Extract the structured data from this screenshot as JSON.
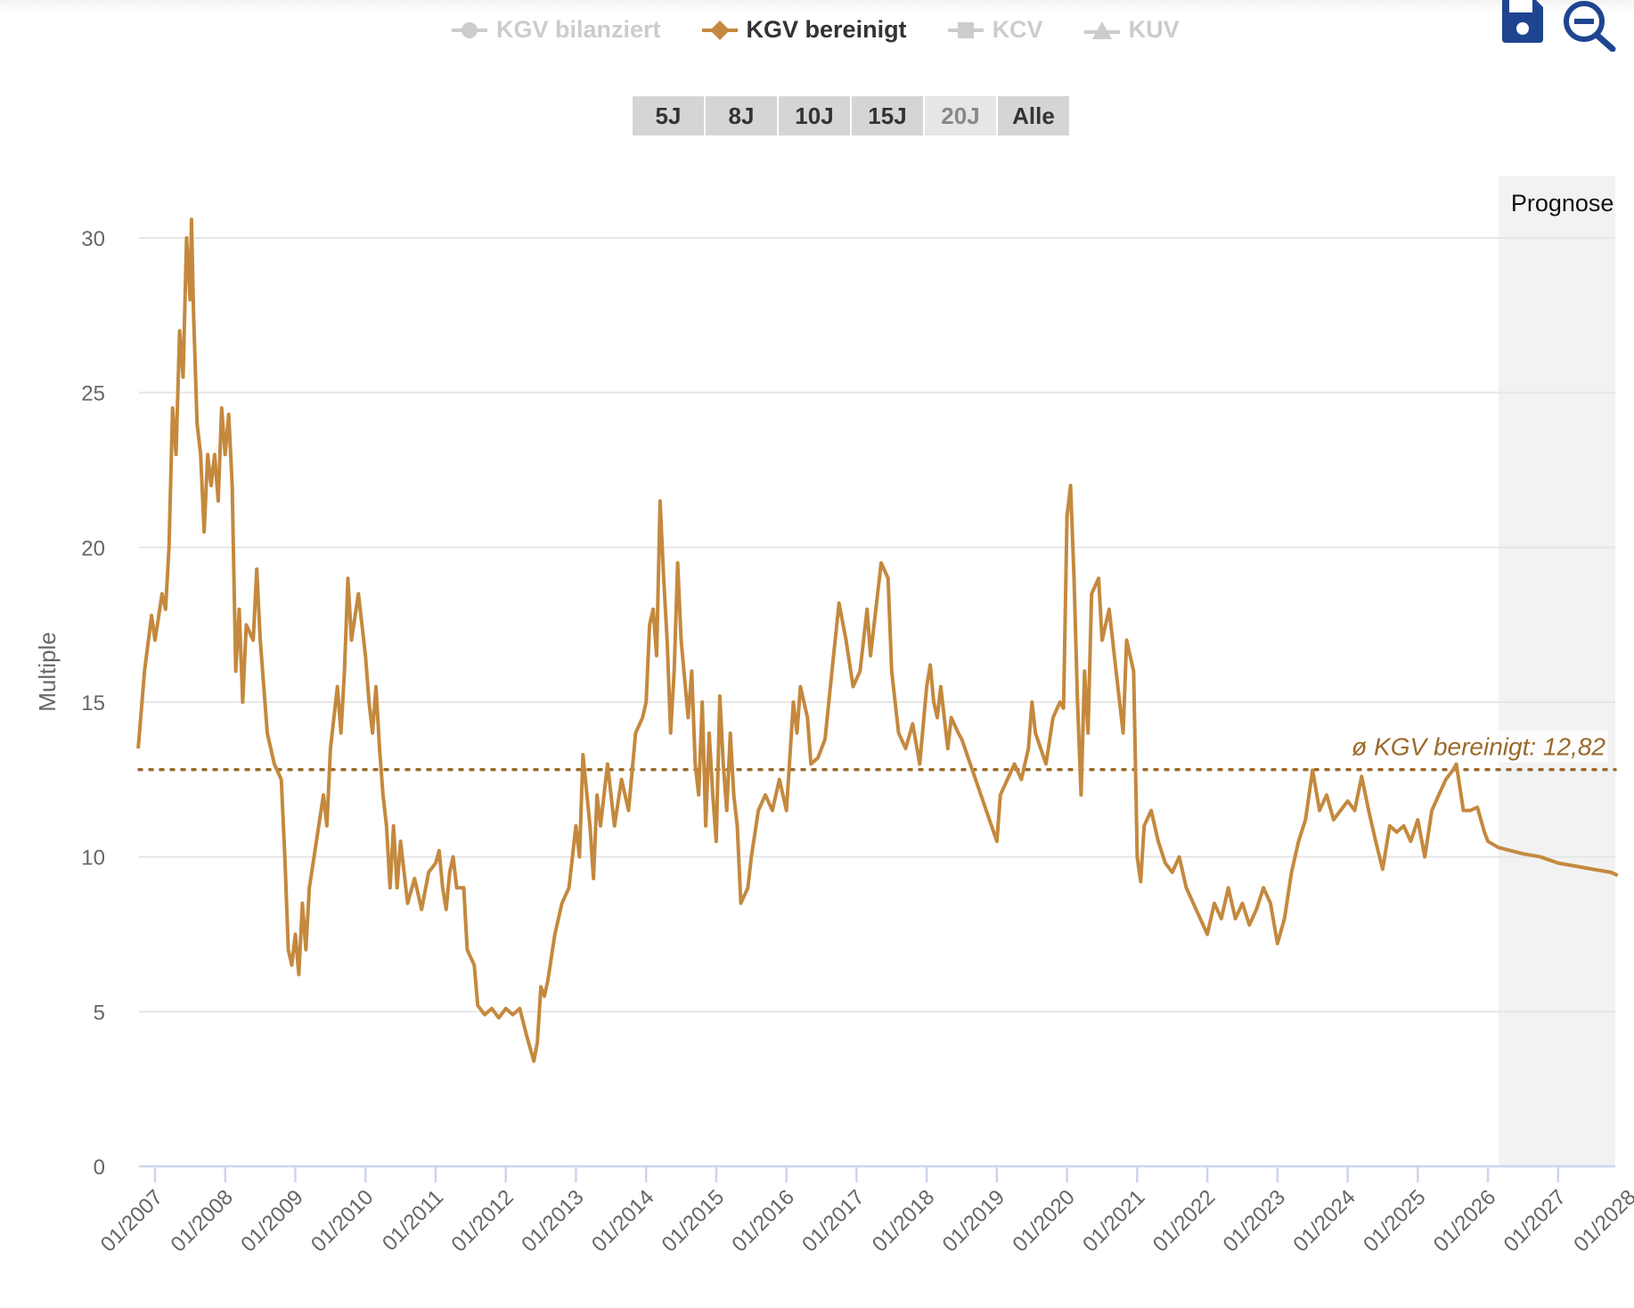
{
  "legend": [
    {
      "label": "KGV bilanziert",
      "icon": "circle-marker",
      "active": false
    },
    {
      "label": "KGV bereinigt",
      "icon": "diamond-marker",
      "active": true
    },
    {
      "label": "KCV",
      "icon": "square-marker",
      "active": false
    },
    {
      "label": "KUV",
      "icon": "triangle-marker",
      "active": false
    }
  ],
  "ranges": [
    {
      "label": "5J",
      "selected": false
    },
    {
      "label": "8J",
      "selected": false
    },
    {
      "label": "10J",
      "selected": false
    },
    {
      "label": "15J",
      "selected": false
    },
    {
      "label": "20J",
      "selected": true
    },
    {
      "label": "Alle",
      "selected": false
    }
  ],
  "toolbar": {
    "save_icon": "save-icon",
    "zoom_out_icon": "zoom-out-icon"
  },
  "colors": {
    "series": "#c4893e",
    "average": "#9a6a2a",
    "forecast_band": "#f2f2f2",
    "axis": "#ccd6eb",
    "grid": "#e6e6e6",
    "icon": "#1f4591"
  },
  "chart_data": {
    "type": "line",
    "title": "",
    "xlabel": "",
    "ylabel": "Multiple",
    "ylim": [
      0,
      30
    ],
    "xlim": [
      2006.76,
      2027.85
    ],
    "grid": true,
    "yticks": [
      "0",
      "5",
      "10",
      "15",
      "20",
      "25",
      "30"
    ],
    "xticks": [
      "01/2007",
      "01/2008",
      "01/2009",
      "01/2010",
      "01/2011",
      "01/2012",
      "01/2013",
      "01/2014",
      "01/2015",
      "01/2016",
      "01/2017",
      "01/2018",
      "01/2019",
      "01/2020",
      "01/2021",
      "01/2022",
      "01/2023",
      "01/2024",
      "01/2025",
      "01/2026",
      "01/2027",
      "01/2028"
    ],
    "forecast": {
      "label": "Prognose",
      "start": 2026.15
    },
    "average": {
      "label": "ø KGV bereinigt: 12,82",
      "value": 12.82
    },
    "series": [
      {
        "name": "KGV bereinigt",
        "points": [
          [
            2006.76,
            13.5
          ],
          [
            2006.85,
            16
          ],
          [
            2006.95,
            17.8
          ],
          [
            2007.0,
            17
          ],
          [
            2007.1,
            18.5
          ],
          [
            2007.15,
            18
          ],
          [
            2007.2,
            20
          ],
          [
            2007.25,
            24.5
          ],
          [
            2007.3,
            23
          ],
          [
            2007.35,
            27
          ],
          [
            2007.4,
            25.5
          ],
          [
            2007.45,
            30
          ],
          [
            2007.5,
            28
          ],
          [
            2007.52,
            30.6
          ],
          [
            2007.55,
            27.5
          ],
          [
            2007.6,
            24
          ],
          [
            2007.65,
            23
          ],
          [
            2007.7,
            20.5
          ],
          [
            2007.75,
            23
          ],
          [
            2007.8,
            22
          ],
          [
            2007.85,
            23
          ],
          [
            2007.9,
            21.5
          ],
          [
            2007.95,
            24.5
          ],
          [
            2008.0,
            23
          ],
          [
            2008.05,
            24.3
          ],
          [
            2008.1,
            22
          ],
          [
            2008.15,
            16
          ],
          [
            2008.2,
            18
          ],
          [
            2008.25,
            15
          ],
          [
            2008.3,
            17.5
          ],
          [
            2008.4,
            17
          ],
          [
            2008.45,
            19.3
          ],
          [
            2008.5,
            17
          ],
          [
            2008.6,
            14
          ],
          [
            2008.7,
            13
          ],
          [
            2008.8,
            12.5
          ],
          [
            2008.85,
            10
          ],
          [
            2008.9,
            7
          ],
          [
            2008.95,
            6.5
          ],
          [
            2009.0,
            7.5
          ],
          [
            2009.05,
            6.2
          ],
          [
            2009.1,
            8.5
          ],
          [
            2009.15,
            7
          ],
          [
            2009.2,
            9
          ],
          [
            2009.3,
            10.5
          ],
          [
            2009.4,
            12
          ],
          [
            2009.45,
            11
          ],
          [
            2009.5,
            13.5
          ],
          [
            2009.6,
            15.5
          ],
          [
            2009.65,
            14
          ],
          [
            2009.7,
            16
          ],
          [
            2009.75,
            19
          ],
          [
            2009.8,
            17
          ],
          [
            2009.9,
            18.5
          ],
          [
            2010.0,
            16.5
          ],
          [
            2010.05,
            15
          ],
          [
            2010.1,
            14
          ],
          [
            2010.15,
            15.5
          ],
          [
            2010.2,
            13.5
          ],
          [
            2010.25,
            12
          ],
          [
            2010.3,
            11
          ],
          [
            2010.35,
            9
          ],
          [
            2010.4,
            11
          ],
          [
            2010.45,
            9
          ],
          [
            2010.5,
            10.5
          ],
          [
            2010.6,
            8.5
          ],
          [
            2010.7,
            9.3
          ],
          [
            2010.8,
            8.3
          ],
          [
            2010.9,
            9.5
          ],
          [
            2011.0,
            9.8
          ],
          [
            2011.05,
            10.2
          ],
          [
            2011.1,
            9
          ],
          [
            2011.15,
            8.3
          ],
          [
            2011.2,
            9.5
          ],
          [
            2011.25,
            10
          ],
          [
            2011.3,
            9
          ],
          [
            2011.4,
            9
          ],
          [
            2011.45,
            7
          ],
          [
            2011.55,
            6.5
          ],
          [
            2011.6,
            5.2
          ],
          [
            2011.7,
            4.9
          ],
          [
            2011.8,
            5.1
          ],
          [
            2011.9,
            4.8
          ],
          [
            2012.0,
            5.1
          ],
          [
            2012.1,
            4.9
          ],
          [
            2012.2,
            5.1
          ],
          [
            2012.3,
            4.2
          ],
          [
            2012.4,
            3.4
          ],
          [
            2012.45,
            4
          ],
          [
            2012.5,
            5.8
          ],
          [
            2012.55,
            5.5
          ],
          [
            2012.6,
            6
          ],
          [
            2012.7,
            7.5
          ],
          [
            2012.8,
            8.5
          ],
          [
            2012.9,
            9
          ],
          [
            2013.0,
            11
          ],
          [
            2013.05,
            10
          ],
          [
            2013.1,
            13.3
          ],
          [
            2013.2,
            11
          ],
          [
            2013.25,
            9.3
          ],
          [
            2013.3,
            12
          ],
          [
            2013.35,
            11
          ],
          [
            2013.45,
            13
          ],
          [
            2013.55,
            11
          ],
          [
            2013.65,
            12.5
          ],
          [
            2013.75,
            11.5
          ],
          [
            2013.85,
            14
          ],
          [
            2013.95,
            14.5
          ],
          [
            2014.0,
            15
          ],
          [
            2014.05,
            17.5
          ],
          [
            2014.1,
            18
          ],
          [
            2014.15,
            16.5
          ],
          [
            2014.2,
            21.5
          ],
          [
            2014.25,
            19
          ],
          [
            2014.3,
            17
          ],
          [
            2014.35,
            14
          ],
          [
            2014.4,
            16
          ],
          [
            2014.45,
            19.5
          ],
          [
            2014.5,
            17
          ],
          [
            2014.6,
            14.5
          ],
          [
            2014.65,
            16
          ],
          [
            2014.7,
            13
          ],
          [
            2014.75,
            12
          ],
          [
            2014.8,
            15
          ],
          [
            2014.85,
            11
          ],
          [
            2014.9,
            14
          ],
          [
            2014.95,
            12
          ],
          [
            2015.0,
            10.5
          ],
          [
            2015.05,
            15.2
          ],
          [
            2015.1,
            13
          ],
          [
            2015.15,
            11.5
          ],
          [
            2015.2,
            14
          ],
          [
            2015.25,
            12
          ],
          [
            2015.3,
            11
          ],
          [
            2015.35,
            8.5
          ],
          [
            2015.45,
            9
          ],
          [
            2015.5,
            10
          ],
          [
            2015.6,
            11.5
          ],
          [
            2015.7,
            12
          ],
          [
            2015.8,
            11.5
          ],
          [
            2015.9,
            12.5
          ],
          [
            2016.0,
            11.5
          ],
          [
            2016.1,
            15
          ],
          [
            2016.15,
            14
          ],
          [
            2016.2,
            15.5
          ],
          [
            2016.3,
            14.5
          ],
          [
            2016.35,
            13
          ],
          [
            2016.45,
            13.2
          ],
          [
            2016.55,
            13.8
          ],
          [
            2016.65,
            16
          ],
          [
            2016.75,
            18.2
          ],
          [
            2016.85,
            17
          ],
          [
            2016.95,
            15.5
          ],
          [
            2017.05,
            16
          ],
          [
            2017.15,
            18
          ],
          [
            2017.2,
            16.5
          ],
          [
            2017.35,
            19.5
          ],
          [
            2017.45,
            19
          ],
          [
            2017.5,
            16
          ],
          [
            2017.6,
            14
          ],
          [
            2017.7,
            13.5
          ],
          [
            2017.8,
            14.3
          ],
          [
            2017.9,
            13
          ],
          [
            2018.0,
            15.5
          ],
          [
            2018.05,
            16.2
          ],
          [
            2018.1,
            15
          ],
          [
            2018.15,
            14.5
          ],
          [
            2018.2,
            15.5
          ],
          [
            2018.3,
            13.5
          ],
          [
            2018.35,
            14.5
          ],
          [
            2018.45,
            14
          ],
          [
            2018.5,
            13.8
          ],
          [
            2019.0,
            10.5
          ],
          [
            2019.05,
            12
          ],
          [
            2019.15,
            12.5
          ],
          [
            2019.25,
            13
          ],
          [
            2019.35,
            12.5
          ],
          [
            2019.45,
            13.5
          ],
          [
            2019.5,
            15
          ],
          [
            2019.55,
            14
          ],
          [
            2019.7,
            13
          ],
          [
            2019.8,
            14.5
          ],
          [
            2019.9,
            15
          ],
          [
            2019.95,
            14.8
          ],
          [
            2020.0,
            21
          ],
          [
            2020.05,
            22
          ],
          [
            2020.1,
            19
          ],
          [
            2020.15,
            15
          ],
          [
            2020.2,
            12
          ],
          [
            2020.25,
            16
          ],
          [
            2020.3,
            14
          ],
          [
            2020.35,
            18.5
          ],
          [
            2020.45,
            19
          ],
          [
            2020.5,
            17
          ],
          [
            2020.6,
            18
          ],
          [
            2020.7,
            16
          ],
          [
            2020.8,
            14
          ],
          [
            2020.85,
            17
          ],
          [
            2020.95,
            16
          ],
          [
            2021.0,
            10
          ],
          [
            2021.05,
            9.2
          ],
          [
            2021.1,
            11
          ],
          [
            2021.2,
            11.5
          ],
          [
            2021.3,
            10.5
          ],
          [
            2021.4,
            9.8
          ],
          [
            2021.5,
            9.5
          ],
          [
            2021.6,
            10
          ],
          [
            2021.7,
            9
          ],
          [
            2021.8,
            8.5
          ],
          [
            2021.9,
            8
          ],
          [
            2022.0,
            7.5
          ],
          [
            2022.1,
            8.5
          ],
          [
            2022.2,
            8
          ],
          [
            2022.3,
            9
          ],
          [
            2022.4,
            8
          ],
          [
            2022.5,
            8.5
          ],
          [
            2022.6,
            7.8
          ],
          [
            2022.7,
            8.3
          ],
          [
            2022.8,
            9
          ],
          [
            2022.9,
            8.5
          ],
          [
            2023.0,
            7.2
          ],
          [
            2023.1,
            8
          ],
          [
            2023.2,
            9.5
          ],
          [
            2023.3,
            10.5
          ],
          [
            2023.4,
            11.2
          ],
          [
            2023.5,
            12.8
          ],
          [
            2023.6,
            11.5
          ],
          [
            2023.7,
            12
          ],
          [
            2023.8,
            11.2
          ],
          [
            2023.9,
            11.5
          ],
          [
            2024.0,
            11.8
          ],
          [
            2024.1,
            11.5
          ],
          [
            2024.2,
            12.6
          ],
          [
            2024.3,
            11.5
          ],
          [
            2024.4,
            10.5
          ],
          [
            2024.5,
            9.6
          ],
          [
            2024.6,
            11
          ],
          [
            2024.7,
            10.8
          ],
          [
            2024.8,
            11
          ],
          [
            2024.9,
            10.5
          ],
          [
            2025.0,
            11.2
          ],
          [
            2025.1,
            10
          ],
          [
            2025.2,
            11.5
          ],
          [
            2025.3,
            12
          ],
          [
            2025.4,
            12.5
          ],
          [
            2025.5,
            12.8
          ],
          [
            2025.55,
            13
          ],
          [
            2025.65,
            11.5
          ],
          [
            2025.75,
            11.5
          ],
          [
            2025.85,
            11.6
          ],
          [
            2025.95,
            10.8
          ],
          [
            2026.0,
            10.5
          ],
          [
            2026.15,
            10.3
          ],
          [
            2026.5,
            10.1
          ],
          [
            2026.75,
            10.0
          ],
          [
            2027.0,
            9.8
          ],
          [
            2027.25,
            9.7
          ],
          [
            2027.5,
            9.6
          ],
          [
            2027.75,
            9.5
          ],
          [
            2027.85,
            9.4
          ]
        ]
      }
    ]
  }
}
